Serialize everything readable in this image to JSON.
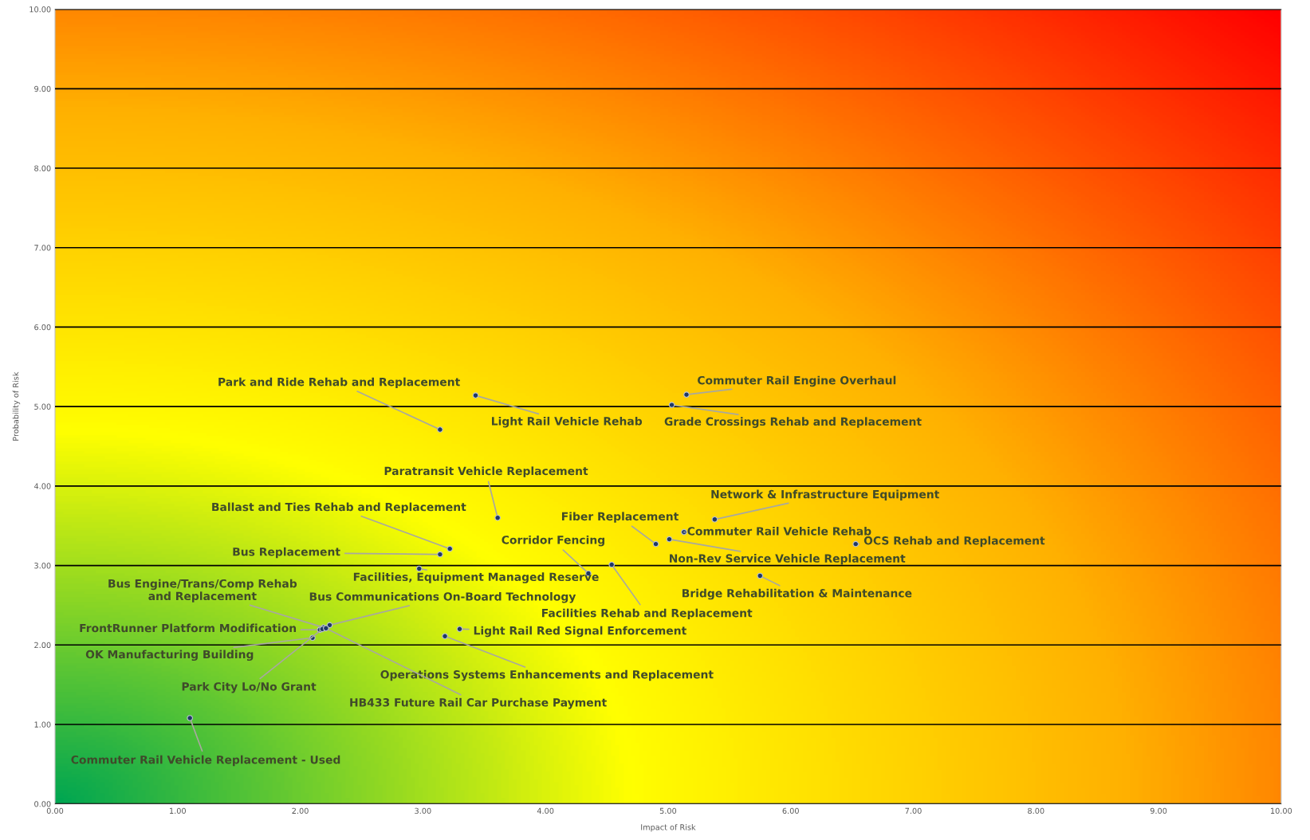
{
  "chart_data": {
    "type": "scatter",
    "xlabel": "Impact of Risk",
    "ylabel": "Probability of Risk",
    "xlim": [
      0,
      10
    ],
    "ylim": [
      0,
      10
    ],
    "xticks": [
      {
        "value": 0,
        "label": "0.00"
      },
      {
        "value": 1,
        "label": "1.00"
      },
      {
        "value": 2,
        "label": "2.00"
      },
      {
        "value": 3,
        "label": "3.00"
      },
      {
        "value": 4,
        "label": "4.00"
      },
      {
        "value": 5,
        "label": "5.00"
      },
      {
        "value": 6,
        "label": "6.00"
      },
      {
        "value": 7,
        "label": "7.00"
      },
      {
        "value": 8,
        "label": "8.00"
      },
      {
        "value": 9,
        "label": "9.00"
      },
      {
        "value": 10,
        "label": "10.00"
      }
    ],
    "yticks": [
      {
        "value": 0,
        "label": "0.00"
      },
      {
        "value": 1,
        "label": "1.00"
      },
      {
        "value": 2,
        "label": "2.00"
      },
      {
        "value": 3,
        "label": "3.00"
      },
      {
        "value": 4,
        "label": "4.00"
      },
      {
        "value": 5,
        "label": "5.00"
      },
      {
        "value": 6,
        "label": "6.00"
      },
      {
        "value": 7,
        "label": "7.00"
      },
      {
        "value": 8,
        "label": "8.00"
      },
      {
        "value": 9,
        "label": "9.00"
      },
      {
        "value": 10,
        "label": "10.00"
      }
    ],
    "grid": "y",
    "marker": "circle",
    "legend": false,
    "series": [
      {
        "color": "#1f3864",
        "x": [
          3.14,
          3.43,
          5.15,
          5.03,
          3.61,
          3.22,
          3.14,
          2.97,
          4.35,
          4.54,
          4.9,
          5.01,
          5.13,
          5.38,
          6.53,
          5.75,
          3.3,
          3.18,
          2.19,
          2.24,
          2.16,
          2.1,
          2.18,
          2.21,
          1.1
        ],
        "values": [
          4.71,
          5.14,
          5.15,
          5.02,
          3.6,
          3.21,
          3.14,
          2.96,
          2.9,
          3.01,
          3.27,
          3.33,
          3.42,
          3.58,
          3.27,
          2.87,
          2.2,
          2.11,
          2.22,
          2.25,
          2.19,
          2.09,
          2.2,
          2.21,
          1.08
        ]
      }
    ],
    "annotations": [
      {
        "text": "Park and Ride Rehab and Replacement",
        "x": 3.14,
        "y": 4.71
      },
      {
        "text": "Light Rail Vehicle Rehab",
        "x": 3.43,
        "y": 5.14
      },
      {
        "text": "Commuter Rail Engine Overhaul",
        "x": 5.15,
        "y": 5.15
      },
      {
        "text": "Grade Crossings Rehab and Replacement",
        "x": 5.03,
        "y": 5.02
      },
      {
        "text": "Paratransit Vehicle Replacement",
        "x": 3.61,
        "y": 3.6
      },
      {
        "text": "Ballast and Ties Rehab and Replacement",
        "x": 3.22,
        "y": 3.21
      },
      {
        "text": "Bus Replacement",
        "x": 3.14,
        "y": 3.14
      },
      {
        "text": "Facilities, Equipment Managed Reserve",
        "x": 2.97,
        "y": 2.96
      },
      {
        "text": "Corridor Fencing",
        "x": 4.35,
        "y": 2.9
      },
      {
        "text": "Facilities Rehab and Replacement",
        "x": 4.54,
        "y": 3.01
      },
      {
        "text": "Fiber Replacement",
        "x": 4.9,
        "y": 3.27
      },
      {
        "text": "Non-Rev Service Vehicle Replacement",
        "x": 5.01,
        "y": 3.33
      },
      {
        "text": "Commuter Rail Vehicle Rehab",
        "x": 5.13,
        "y": 3.42
      },
      {
        "text": "Network & Infrastructure Equipment",
        "x": 5.38,
        "y": 3.58
      },
      {
        "text": "OCS Rehab and Replacement",
        "x": 6.53,
        "y": 3.27
      },
      {
        "text": "Bridge Rehabilitation & Maintenance",
        "x": 5.75,
        "y": 2.87
      },
      {
        "text": "Light Rail Red Signal Enforcement",
        "x": 3.3,
        "y": 2.2
      },
      {
        "text": "Operations Systems Enhancements and Replacement",
        "x": 3.18,
        "y": 2.11
      },
      {
        "text": "Bus Engine/Trans/Comp Rehab\nand Replacement",
        "x": 2.19,
        "y": 2.22
      },
      {
        "text": "Bus Communications On-Board Technology",
        "x": 2.24,
        "y": 2.25
      },
      {
        "text": "FrontRunner Platform Modification",
        "x": 2.16,
        "y": 2.19
      },
      {
        "text": "OK Manufacturing Building",
        "x": 2.1,
        "y": 2.09
      },
      {
        "text": "Park City Lo/No Grant",
        "x": 2.18,
        "y": 2.2
      },
      {
        "text": "HB433 Future Rail Car Purchase Payment",
        "x": 2.21,
        "y": 2.21
      },
      {
        "text": "Commuter Rail Vehicle Replacement - Used",
        "x": 1.1,
        "y": 1.08
      }
    ]
  }
}
